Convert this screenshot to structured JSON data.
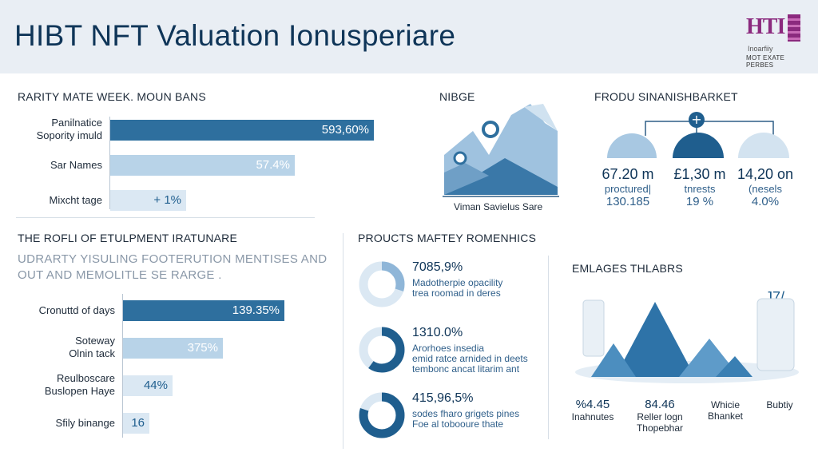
{
  "header": {
    "title": "HIBT NFT Valuation Ionusperiare"
  },
  "logo": {
    "mark": "HTI",
    "line1": "Inoarfiiy",
    "line2": "MOT EXATE PERBES"
  },
  "colors": {
    "dark": "#2e6f9e",
    "mid": "#6f9fc6",
    "light": "#b8d3e8",
    "pale": "#dbe8f3",
    "navy": "#0f3558"
  },
  "rarity": {
    "title": "RARITY MATE WEEK. MOUN BANS",
    "items": [
      {
        "label": [
          "Panilnatice",
          "Sopority imuld"
        ],
        "value_label": "593,60%",
        "fraction": 0.97,
        "tone": "dark"
      },
      {
        "label": [
          "Sar Names"
        ],
        "value_label": "57.4%",
        "fraction": 0.68,
        "tone": "light"
      },
      {
        "label": [
          "Mixcht tage"
        ],
        "value_label": "+ 1%",
        "fraction": 0.28,
        "tone": "pale"
      }
    ]
  },
  "niege": {
    "title": "NIBGE",
    "caption": "Viman Savielus Sare"
  },
  "market": {
    "title": "FRODU SINANISHBARKET",
    "icon": "plus-icon",
    "stats": [
      {
        "big": "67.20 m",
        "small": "proctured|",
        "pct": "130.185"
      },
      {
        "big": "£1,30 m",
        "small": "tnrests",
        "pct": "19 %"
      },
      {
        "big": "14,20 on",
        "small": "(nesels",
        "pct": "4.0%"
      }
    ]
  },
  "profile": {
    "title": "THE ROFLI OF ETULPMENT IRATUNARE",
    "subtitle": [
      "UDRARTY YISULING FOOTERUTION MENTISES AND",
      "OUT AND MEMOLITLE SE RARGE ."
    ],
    "items": [
      {
        "label": [
          "Cronuttd of days"
        ],
        "value_label": "139.35%",
        "fraction": 0.97,
        "tone": "dark"
      },
      {
        "label": [
          "Soteway",
          "Olnin tack"
        ],
        "value_label": "375%",
        "fraction": 0.6,
        "tone": "light"
      },
      {
        "label": [
          "Reulboscare",
          "Buslopen Haye"
        ],
        "value_label": "44%",
        "fraction": 0.3,
        "tone": "pale"
      },
      {
        "label": [
          "Sfily binange"
        ],
        "value_label": "16",
        "fraction": 0.16,
        "tone": "pale"
      }
    ]
  },
  "products": {
    "title": "PROUCTS MAFTEY ROMENHICS",
    "items": [
      {
        "pct": "7085,9%",
        "desc": [
          "Madotherpie opacility",
          "trea roomad in deres"
        ],
        "fraction": 0.3,
        "ring": "light"
      },
      {
        "pct": "1310.0%",
        "desc": [
          "Arorhoes insedia",
          "emid ratce arnided in deets",
          "tembonc ancat litarim ant"
        ],
        "fraction": 0.6,
        "ring": "dark"
      },
      {
        "pct": "415,96,5%",
        "desc": [
          "sodes fharo grigets pines",
          "Foe al tobooure thate"
        ],
        "fraction": 0.8,
        "ring": "dark"
      }
    ]
  },
  "emlages": {
    "title": "EMLAGES  THLABRS",
    "badge": "J7/",
    "stats": [
      {
        "v": "%4.45",
        "l": [
          "Inahnutes"
        ]
      },
      {
        "v": "84.46",
        "l": [
          "Reller logn",
          "Thopebhar"
        ]
      },
      {
        "v": "",
        "l": [
          "Whicie",
          "Bhanket"
        ]
      },
      {
        "v": "",
        "l": [
          "Bubtiy"
        ]
      }
    ]
  }
}
